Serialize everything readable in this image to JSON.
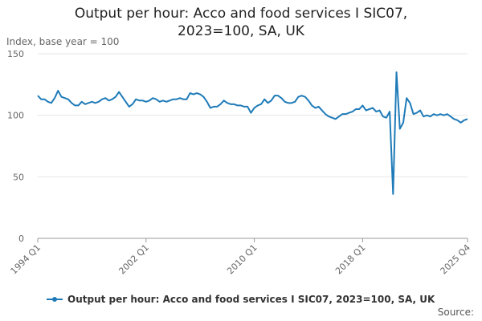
{
  "chart_data": {
    "type": "line",
    "title": "Output per hour: Acco and food services I SIC07, 2023=100, SA, UK",
    "subtitle": "Index, base year = 100",
    "source": "Source:",
    "categories": [
      "1994 Q1",
      null,
      null,
      null,
      null,
      null,
      null,
      null,
      null,
      null,
      null,
      null,
      null,
      null,
      null,
      null,
      null,
      null,
      null,
      null,
      null,
      null,
      null,
      null,
      null,
      null,
      null,
      null,
      null,
      null,
      null,
      null,
      "2002 Q1",
      null,
      null,
      null,
      null,
      null,
      null,
      null,
      null,
      null,
      null,
      null,
      null,
      null,
      null,
      null,
      null,
      null,
      null,
      null,
      null,
      null,
      null,
      null,
      null,
      null,
      null,
      null,
      null,
      null,
      null,
      null,
      "2010 Q1",
      null,
      null,
      null,
      null,
      null,
      null,
      null,
      null,
      null,
      null,
      null,
      null,
      null,
      null,
      null,
      null,
      null,
      null,
      null,
      null,
      null,
      null,
      null,
      null,
      null,
      null,
      null,
      null,
      null,
      null,
      null,
      "2018 Q1",
      null,
      null,
      null,
      null,
      null,
      null,
      null,
      null,
      null,
      null,
      null,
      null,
      null,
      null,
      null,
      null,
      null,
      null,
      null,
      null,
      null,
      null,
      null,
      null,
      null,
      null,
      null,
      null,
      null,
      null,
      "2025 Q4"
    ],
    "series": [
      {
        "name": "Output per hour: Acco and food services I SIC07, 2023=100, SA, UK",
        "color": "#1f7bb8",
        "values": [
          116,
          113,
          113,
          111,
          110,
          114,
          120,
          115,
          114,
          113,
          110,
          108,
          108,
          111,
          109,
          110,
          111,
          110,
          111,
          113,
          114,
          112,
          113,
          115,
          119,
          115,
          111,
          107,
          109,
          113,
          112,
          112,
          111,
          112,
          114,
          113,
          111,
          112,
          111,
          112,
          113,
          113,
          114,
          113,
          113,
          118,
          117,
          118,
          117,
          115,
          111,
          106,
          107,
          107,
          109,
          112,
          110,
          109,
          109,
          108,
          108,
          107,
          107,
          102,
          106,
          108,
          109,
          113,
          110,
          112,
          116,
          116,
          114,
          111,
          110,
          110,
          111,
          115,
          116,
          115,
          112,
          108,
          106,
          107,
          104,
          101,
          99,
          98,
          97,
          99,
          101,
          101,
          102,
          103,
          105,
          105,
          108,
          104,
          105,
          106,
          103,
          104,
          99,
          98,
          103,
          36,
          135,
          89,
          94,
          114,
          110,
          101,
          102,
          104,
          99,
          100,
          99,
          101,
          100,
          101,
          100,
          101,
          99,
          97,
          96,
          94,
          96,
          97
        ]
      }
    ],
    "ylim": [
      0,
      150
    ],
    "yticks": [
      0,
      50,
      100,
      150
    ],
    "grid": true
  }
}
